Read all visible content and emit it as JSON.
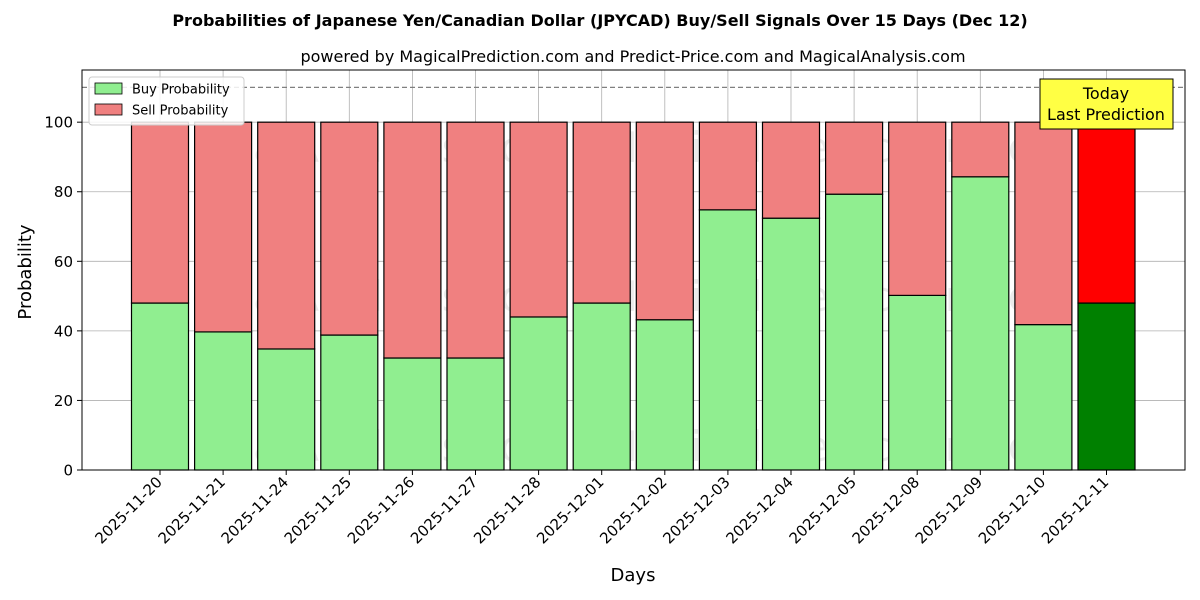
{
  "chart_data": {
    "type": "bar",
    "stacked": true,
    "title": "Probabilities of Japanese Yen/Canadian Dollar (JPYCAD) Buy/Sell Signals Over 15 Days (Dec 12)",
    "subtitle": "powered by MagicalPrediction.com and Predict-Price.com and MagicalAnalysis.com",
    "xlabel": "Days",
    "ylabel": "Probability",
    "ylim": [
      0,
      115
    ],
    "yticks": [
      0,
      20,
      40,
      60,
      80,
      100
    ],
    "grid": true,
    "legend_position": "top-left",
    "reference_line": 110,
    "categories": [
      "2025-11-20",
      "2025-11-21",
      "2025-11-24",
      "2025-11-25",
      "2025-11-26",
      "2025-11-27",
      "2025-11-28",
      "2025-12-01",
      "2025-12-02",
      "2025-12-03",
      "2025-12-04",
      "2025-12-05",
      "2025-12-08",
      "2025-12-09",
      "2025-12-10",
      "2025-12-11"
    ],
    "series": [
      {
        "name": "Buy Probability",
        "color": "#90ee90",
        "highlight_color": "#008000",
        "values": [
          48,
          39.7,
          34.8,
          38.8,
          32.2,
          32.2,
          44,
          48,
          43.2,
          74.8,
          72.4,
          79.3,
          50.2,
          84.3,
          41.8,
          48
        ]
      },
      {
        "name": "Sell Probability",
        "color": "#f08080",
        "highlight_color": "#ff0000",
        "values": [
          52,
          60.3,
          65.2,
          61.2,
          67.8,
          67.8,
          56,
          52,
          56.8,
          25.2,
          27.6,
          20.7,
          49.8,
          15.7,
          58.2,
          52
        ]
      }
    ],
    "annotation": {
      "line1": "Today",
      "line2": "Last Prediction",
      "color": "#ffff44"
    },
    "watermarks": [
      "MagicalAnalysis.com",
      "MagicalPrediction.com"
    ]
  }
}
